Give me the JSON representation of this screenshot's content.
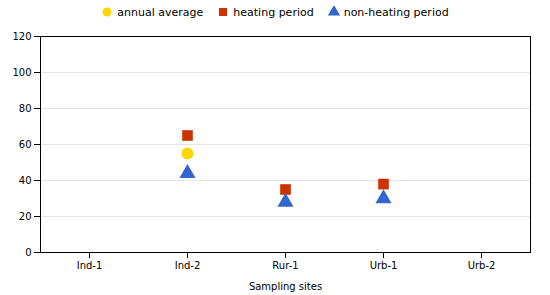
{
  "chart_data": {
    "type": "scatter",
    "categories": [
      "Ind-1",
      "Ind-2",
      "Rur-1",
      "Urb-1",
      "Urb-2"
    ],
    "series": [
      {
        "name": "annual average",
        "color": "#FFD700",
        "marker": "circle",
        "values": [
          null,
          55,
          null,
          null,
          null
        ]
      },
      {
        "name": "heating period",
        "color": "#CC3300",
        "marker": "square",
        "values": [
          null,
          65,
          35,
          38,
          null
        ]
      },
      {
        "name": "non-heating period",
        "color": "#3366CC",
        "marker": "triangle",
        "values": [
          null,
          44,
          28,
          30,
          null
        ]
      }
    ],
    "xlabel": "Sampling sites",
    "ylim": [
      0,
      120
    ],
    "yticks": [
      0,
      20,
      40,
      60,
      80,
      100,
      120
    ],
    "grid": true,
    "legend": "top"
  }
}
